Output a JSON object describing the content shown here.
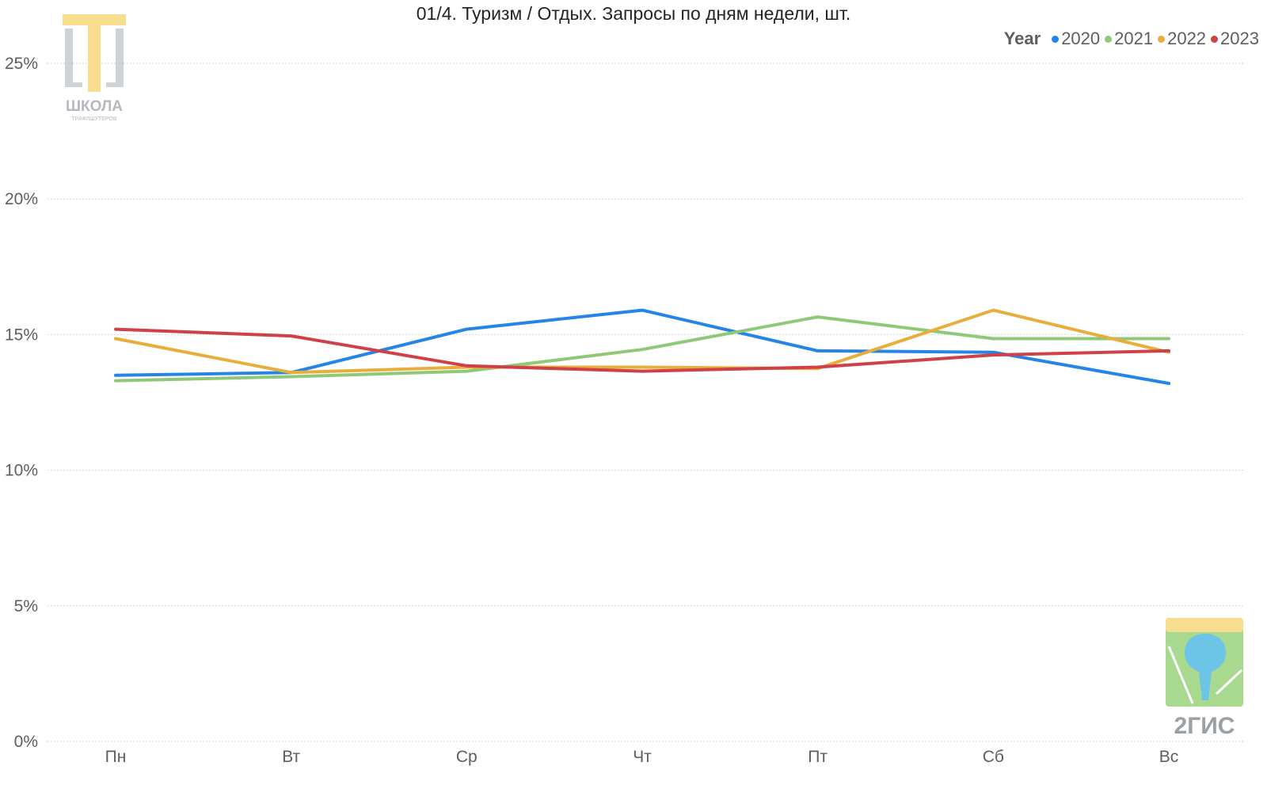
{
  "title": "01/4. Туризм / Отдых. Запросы по дням недели, шт.",
  "legend": {
    "title": "Year"
  },
  "logos": {
    "school_text": "ШКОЛА",
    "school_subtext": "ТРАФЛШУТЕРОВ",
    "brand_text": "2ГИС"
  },
  "chart_data": {
    "type": "line",
    "title": "01/4. Туризм / Отдых. Запросы по дням недели, шт.",
    "xlabel": "",
    "ylabel": "",
    "categories": [
      "Пн",
      "Вт",
      "Ср",
      "Чт",
      "Пт",
      "Сб",
      "Вс"
    ],
    "ylim": [
      0,
      25
    ],
    "yticks": [
      0,
      5,
      10,
      15,
      20,
      25
    ],
    "ytick_labels": [
      "0%",
      "5%",
      "10%",
      "15%",
      "20%",
      "25%"
    ],
    "grid": true,
    "legend_position": "top-right",
    "series": [
      {
        "name": "2020",
        "color": "#2584e8",
        "values": [
          13.5,
          13.6,
          15.2,
          15.9,
          14.4,
          14.35,
          13.2
        ]
      },
      {
        "name": "2021",
        "color": "#8fc978",
        "values": [
          13.3,
          13.45,
          13.65,
          14.45,
          15.65,
          14.85,
          14.85
        ]
      },
      {
        "name": "2022",
        "color": "#e8ae3c",
        "values": [
          14.85,
          13.6,
          13.8,
          13.8,
          13.75,
          15.9,
          14.35
        ]
      },
      {
        "name": "2023",
        "color": "#cf4048",
        "values": [
          15.2,
          14.95,
          13.85,
          13.65,
          13.8,
          14.25,
          14.4
        ]
      }
    ]
  }
}
